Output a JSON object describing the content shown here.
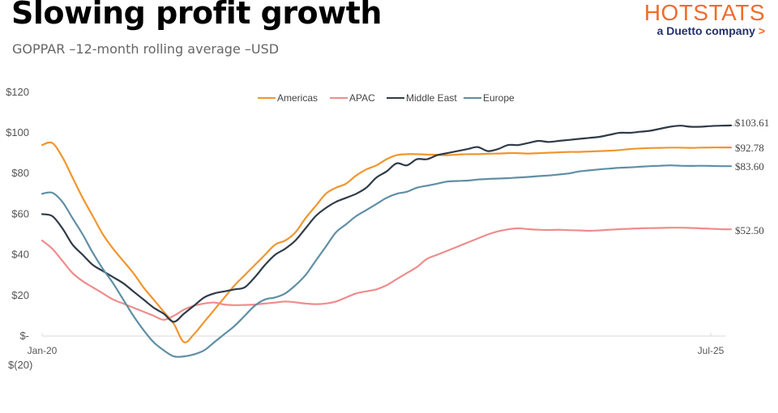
{
  "header": {
    "title": "Slowing profit growth",
    "subtitle": "GOPPAR –12-month rolling average –USD"
  },
  "logo": {
    "brand": "HOTSTATS",
    "tagline": "a Duetto company",
    "arrow": ">"
  },
  "chart_data": {
    "type": "line",
    "title": "Slowing profit growth",
    "subtitle": "GOPPAR –12-month rolling average –USD",
    "xlabel": "",
    "ylabel": "",
    "ylim": [
      -20,
      120
    ],
    "yticks": [
      120,
      100,
      80,
      60,
      40,
      20,
      0,
      -20
    ],
    "ytick_labels": [
      "$120",
      "$100",
      "$80",
      "$60",
      "$40",
      "$20",
      "$-",
      "$(20)"
    ],
    "x_start": "Jan-20",
    "x_tick_labels": [
      "Jan-20",
      "Jul-25"
    ],
    "x_tick_month_index": [
      0,
      66
    ],
    "grid": false,
    "legend": "top-center",
    "series": [
      {
        "name": "Americas",
        "color": "#f0962e",
        "end_label": "$92.78",
        "values": [
          94,
          95,
          88,
          78,
          68,
          59,
          50,
          43,
          37,
          31,
          24,
          18,
          12,
          6,
          -3,
          1,
          7,
          13,
          19,
          25,
          30,
          35,
          40,
          45,
          47,
          51,
          58,
          64,
          70,
          73,
          75,
          79,
          82,
          84,
          87,
          89,
          89.5,
          89.5,
          89.3,
          89.2,
          89,
          89.3,
          89.5,
          89.5,
          89.7,
          89.8,
          90,
          90,
          89.8,
          90,
          90.2,
          90.4,
          90.6,
          90.6,
          90.8,
          91,
          91.2,
          91.5,
          92,
          92.3,
          92.5,
          92.6,
          92.7,
          92.7,
          92.6,
          92.7,
          92.8,
          92.78,
          92.78
        ]
      },
      {
        "name": "APAC",
        "color": "#f08c8c",
        "end_label": "$52.50",
        "values": [
          47,
          43,
          37,
          31,
          27,
          24,
          21,
          18,
          16,
          14,
          12,
          10,
          8,
          10,
          13,
          15,
          16,
          16.5,
          15.5,
          15.2,
          15.3,
          15.5,
          16,
          16.5,
          17,
          16.6,
          16,
          15.7,
          16,
          17,
          19,
          21,
          22,
          23,
          25,
          28,
          31,
          34,
          38,
          40,
          42,
          44,
          46,
          48,
          50,
          51.5,
          52.5,
          53,
          52.6,
          52.3,
          52.2,
          52.3,
          52.1,
          52,
          51.8,
          52,
          52.3,
          52.6,
          52.8,
          53,
          53.1,
          53.2,
          53.3,
          53.3,
          53.2,
          53,
          52.8,
          52.6,
          52.5
        ]
      },
      {
        "name": "Middle East",
        "color": "#2f3b48",
        "end_label": "$103.61",
        "values": [
          60,
          59,
          53,
          45,
          40,
          35,
          32,
          29,
          26,
          22,
          18,
          14,
          11,
          7,
          11,
          15,
          19,
          21,
          22,
          23,
          24,
          29,
          35,
          40,
          43,
          47,
          53,
          59,
          63,
          66,
          68,
          70,
          73,
          78,
          81,
          85,
          84,
          87,
          87,
          89,
          90,
          91,
          92,
          93,
          91,
          92,
          94,
          94,
          95,
          96,
          95.5,
          96,
          96.5,
          97,
          97.5,
          98,
          99,
          100,
          100,
          100.5,
          101,
          102,
          103,
          103.5,
          103,
          103,
          103.3,
          103.5,
          103.61
        ]
      },
      {
        "name": "Europe",
        "color": "#5f8fa5",
        "end_label": "$83.60",
        "values": [
          70,
          70.5,
          66,
          58,
          50,
          41,
          33,
          26,
          18,
          10,
          3,
          -3,
          -7,
          -10,
          -10,
          -9,
          -7,
          -3,
          1,
          5,
          10,
          15,
          18,
          19,
          21,
          25,
          30,
          37,
          44,
          51,
          55,
          59,
          62,
          65,
          68,
          70,
          71,
          73,
          74,
          75,
          76,
          76.3,
          76.5,
          77,
          77.3,
          77.5,
          77.7,
          78,
          78.3,
          78.7,
          79,
          79.5,
          80,
          81,
          81.5,
          82,
          82.4,
          82.8,
          83,
          83.3,
          83.6,
          83.8,
          84,
          83.8,
          83.7,
          83.8,
          83.7,
          83.6,
          83.6
        ]
      }
    ]
  }
}
